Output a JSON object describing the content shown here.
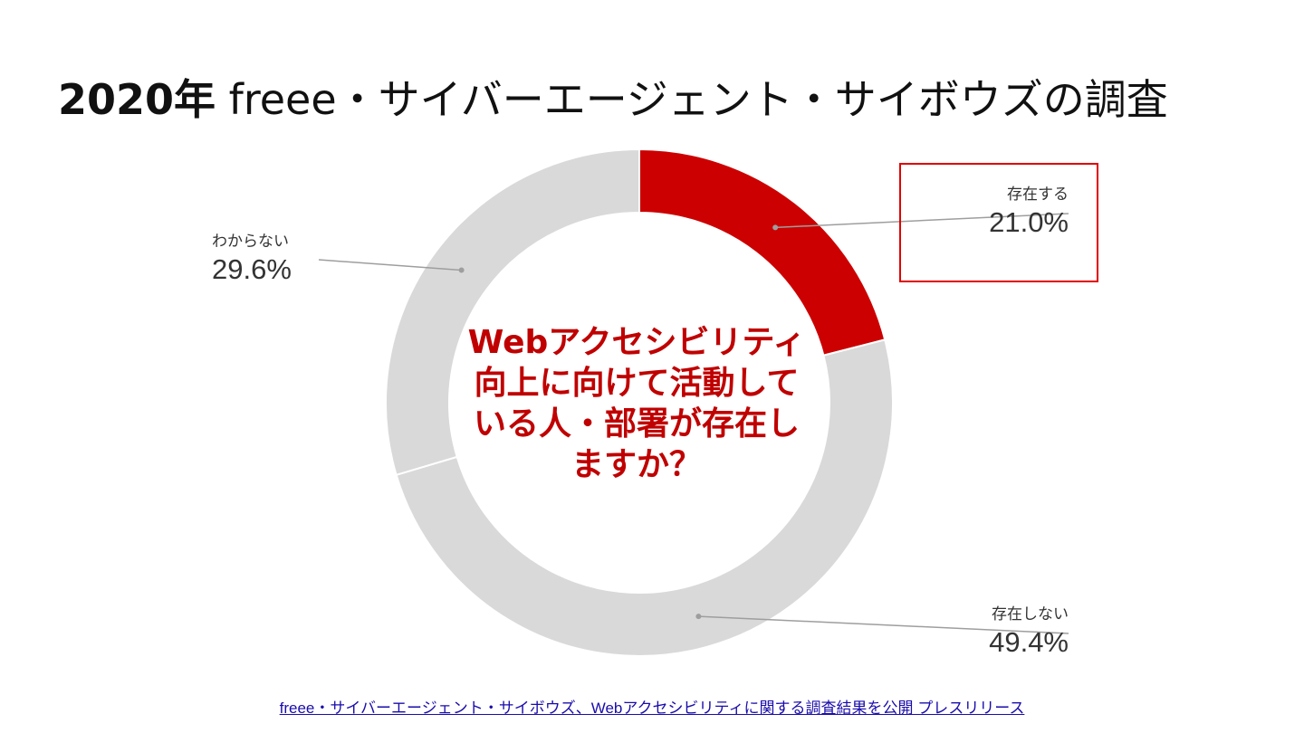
{
  "title": {
    "year": "2020年",
    "rest": " freee・サイバーエージェント・サイボウズの調査"
  },
  "chart_data": {
    "type": "pie",
    "donut": true,
    "categories": [
      "存在する",
      "存在しない",
      "わからない"
    ],
    "values": [
      21.0,
      49.4,
      29.6
    ],
    "value_labels": [
      "21.0%",
      "49.4%",
      "29.6%"
    ],
    "colors": [
      "#cc0000",
      "#d9d9d9",
      "#d9d9d9"
    ],
    "center_text": [
      "Webアクセシビリティ",
      "向上に向けて活動して",
      "いる人・部署が存在し",
      "ますか？"
    ],
    "highlighted": "存在する"
  },
  "source": {
    "link_text": "freee・サイバーエージェント・サイボウズ、Webアクセシビリティに関する調査結果を公開 プレスリリース"
  }
}
